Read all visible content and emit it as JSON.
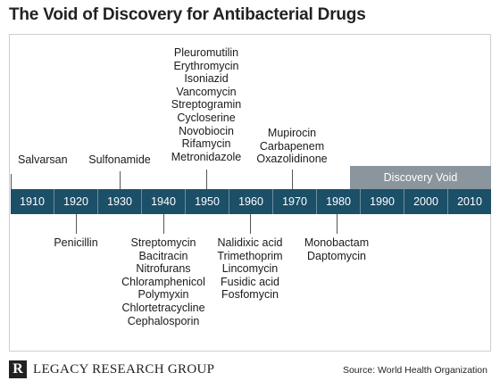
{
  "title": "The Void of Discovery for Antibacterial Drugs",
  "discovery_void_label": "Discovery Void",
  "decades": [
    "1910",
    "1920",
    "1930",
    "1940",
    "1950",
    "1960",
    "1970",
    "1980",
    "1990",
    "2000",
    "2010"
  ],
  "above_groups": {
    "g1910": [
      "Salvarsan"
    ],
    "g1930": [
      "Sulfonamide"
    ],
    "g1950": [
      "Pleuromutilin",
      "Erythromycin",
      "Isoniazid",
      "Vancomycin",
      "Streptogramin",
      "Cycloserine",
      "Novobiocin",
      "Rifamycin",
      "Metronidazole"
    ],
    "g1970": [
      "Mupirocin",
      "Carbapenem",
      "Oxazolidinone"
    ]
  },
  "below_groups": {
    "g1920": [
      "Penicillin"
    ],
    "g1940": [
      "Streptomycin",
      "Bacitracin",
      "Nitrofurans",
      "Chloramphenicol",
      "Polymyxin",
      "Chlortetracycline",
      "Cephalosporin"
    ],
    "g1960": [
      "Nalidixic acid",
      "Trimethoprim",
      "Lincomycin",
      "Fusidic acid",
      "Fosfomycin"
    ],
    "g1980": [
      "Monobactam",
      "Daptomycin"
    ]
  },
  "footer": {
    "logo_mark": "R",
    "brand": "LEGACY RESEARCH GROUP",
    "source": "Source: World Health Organization"
  }
}
